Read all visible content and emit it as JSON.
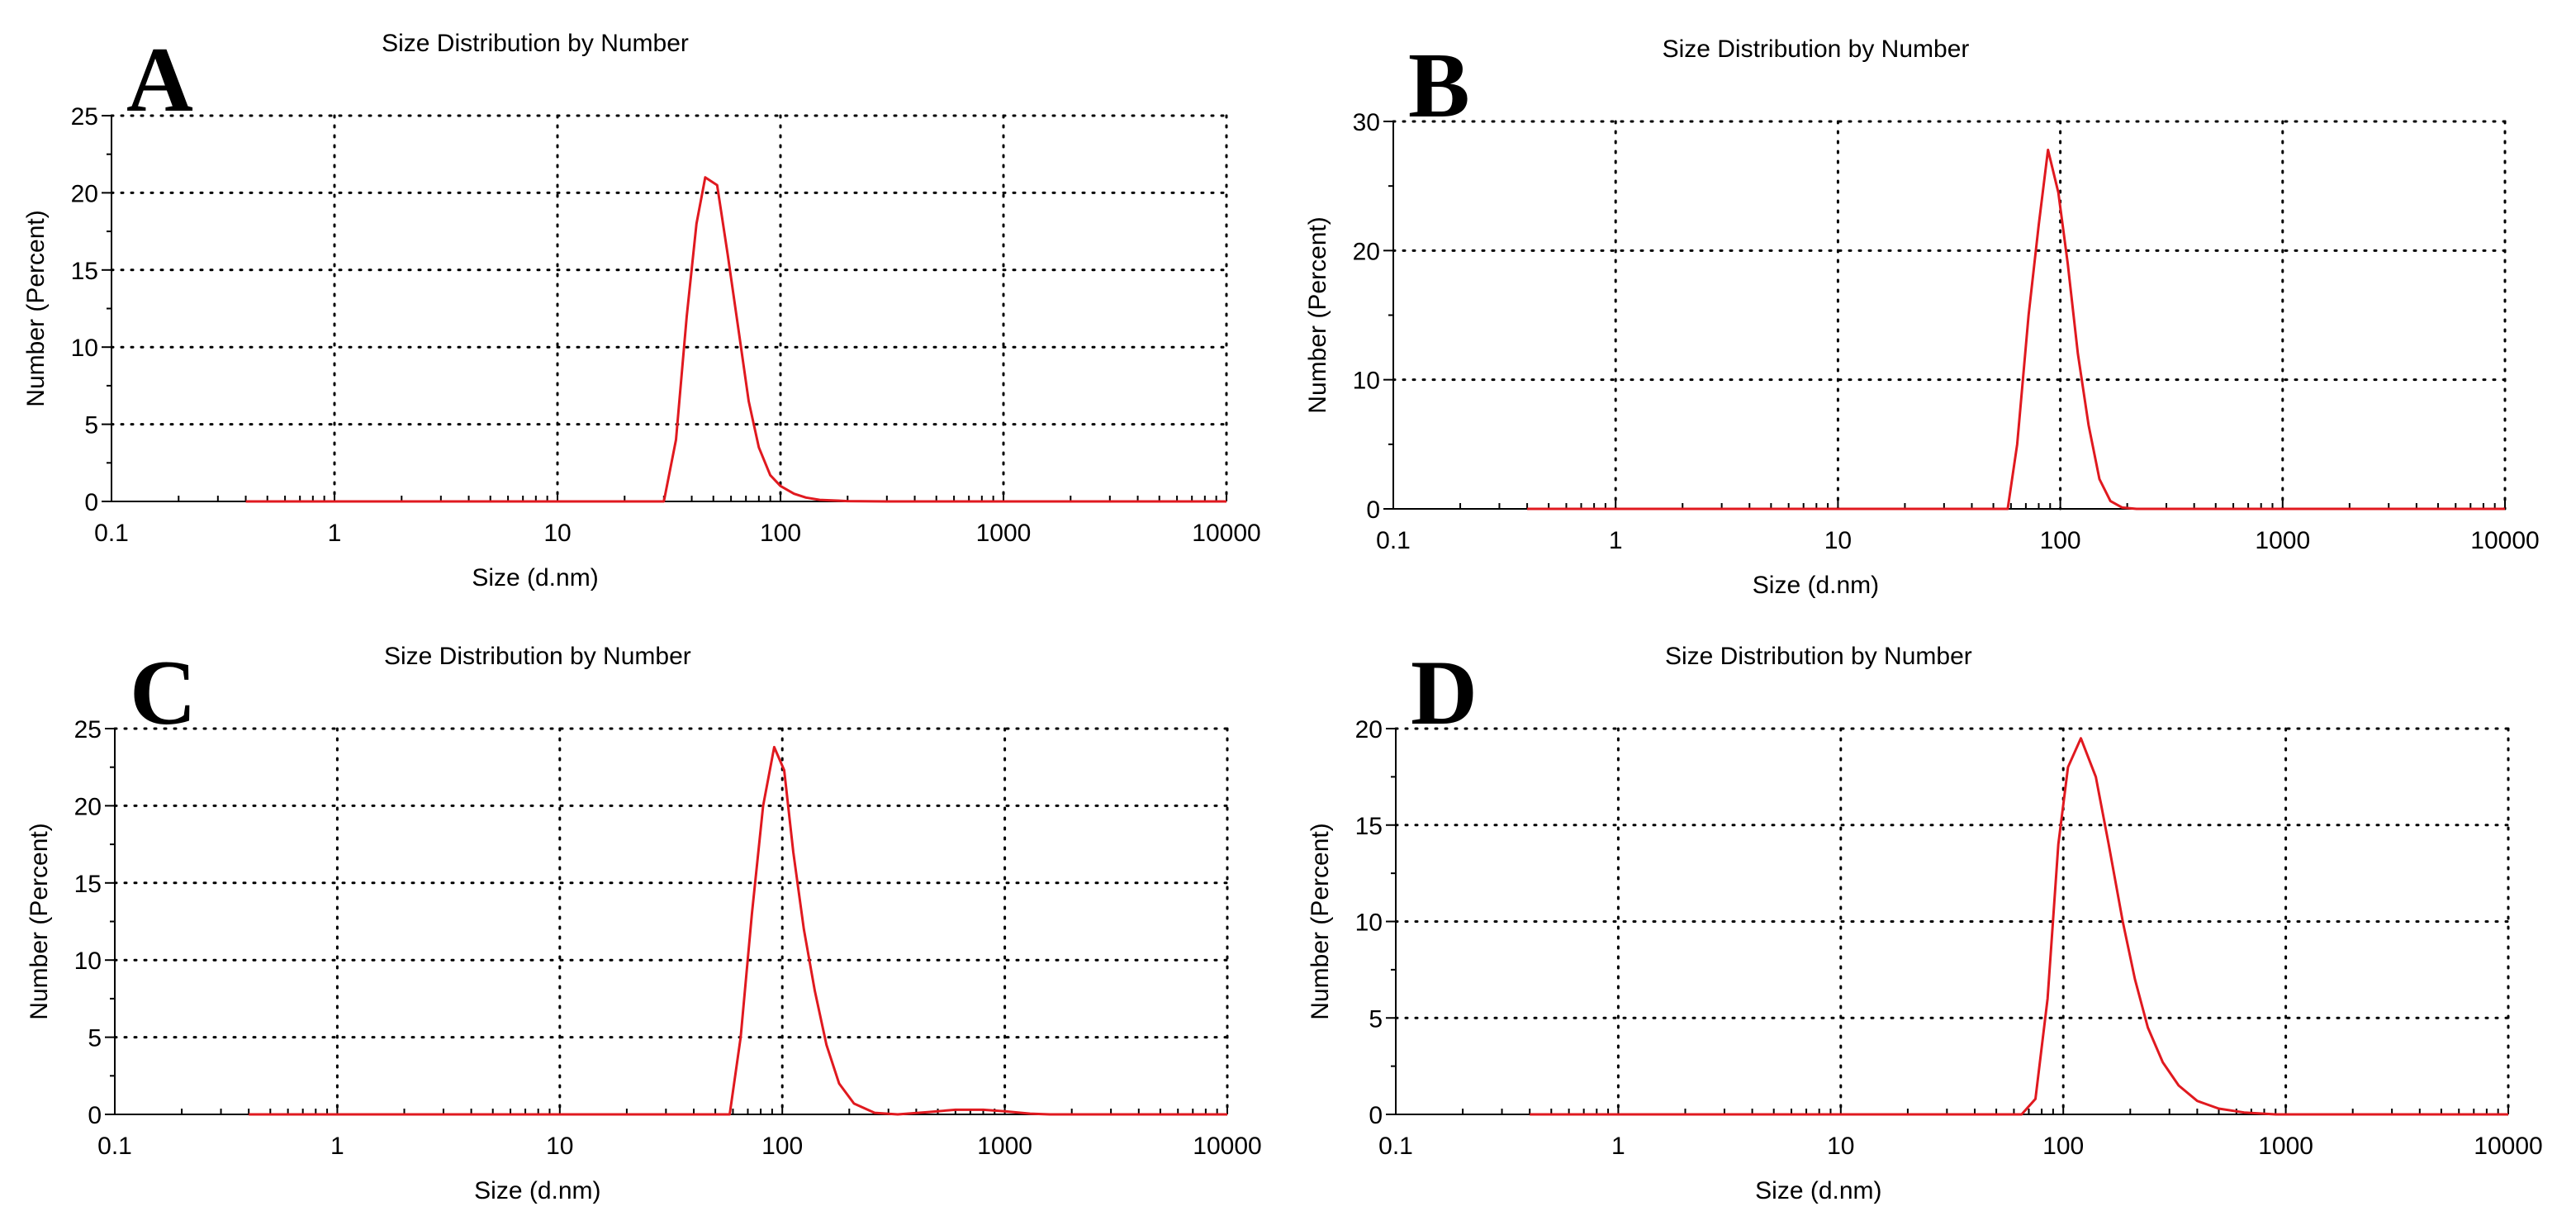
{
  "chart_data": [
    {
      "type": "line",
      "panel": "A",
      "title": "Size Distribution by Number",
      "xlabel": "Size (d.nm)",
      "ylabel": "Number (Percent)",
      "xscale": "log",
      "xlim": [
        0.1,
        10000
      ],
      "ylim": [
        0,
        25
      ],
      "xticks": [
        "0.1",
        "1",
        "10",
        "100",
        "1000",
        "10000"
      ],
      "yticks": [
        "0",
        "5",
        "10",
        "15",
        "20",
        "25"
      ],
      "grid": true,
      "line_color": "#e0191f",
      "series": [
        {
          "name": "Number",
          "points": [
            [
              0.4,
              0
            ],
            [
              30,
              0
            ],
            [
              34,
              4
            ],
            [
              38,
              12
            ],
            [
              42,
              18
            ],
            [
              46,
              21
            ],
            [
              52,
              20.5
            ],
            [
              58,
              16
            ],
            [
              65,
              11
            ],
            [
              72,
              6.5
            ],
            [
              80,
              3.5
            ],
            [
              90,
              1.7
            ],
            [
              100,
              1.0
            ],
            [
              115,
              0.5
            ],
            [
              130,
              0.25
            ],
            [
              150,
              0.1
            ],
            [
              200,
              0.02
            ],
            [
              300,
              0
            ],
            [
              10000,
              0
            ]
          ]
        }
      ]
    },
    {
      "type": "line",
      "panel": "B",
      "title": "Size Distribution by Number",
      "xlabel": "Size (d.nm)",
      "ylabel": "Number (Percent)",
      "xscale": "log",
      "xlim": [
        0.1,
        10000
      ],
      "ylim": [
        0,
        30
      ],
      "xticks": [
        "0.1",
        "1",
        "10",
        "100",
        "1000",
        "10000"
      ],
      "yticks": [
        "0",
        "10",
        "20",
        "30"
      ],
      "grid": true,
      "line_color": "#e0191f",
      "series": [
        {
          "name": "Number",
          "points": [
            [
              0.4,
              0
            ],
            [
              58,
              0
            ],
            [
              64,
              5
            ],
            [
              72,
              15
            ],
            [
              80,
              22
            ],
            [
              88,
              27.8
            ],
            [
              98,
              24.5
            ],
            [
              108,
              19
            ],
            [
              120,
              12
            ],
            [
              134,
              6.5
            ],
            [
              150,
              2.3
            ],
            [
              168,
              0.6
            ],
            [
              190,
              0.1
            ],
            [
              220,
              0
            ],
            [
              10000,
              0
            ]
          ]
        }
      ]
    },
    {
      "type": "line",
      "panel": "C",
      "title": "Size Distribution by Number",
      "xlabel": "Size (d.nm)",
      "ylabel": "Number (Percent)",
      "xscale": "log",
      "xlim": [
        0.1,
        10000
      ],
      "ylim": [
        0,
        25
      ],
      "xticks": [
        "0.1",
        "1",
        "10",
        "100",
        "1000",
        "10000"
      ],
      "yticks": [
        "0",
        "5",
        "10",
        "15",
        "20",
        "25"
      ],
      "grid": true,
      "line_color": "#e0191f",
      "series": [
        {
          "name": "Number",
          "points": [
            [
              0.4,
              0
            ],
            [
              58,
              0
            ],
            [
              65,
              5
            ],
            [
              73,
              13
            ],
            [
              82,
              20
            ],
            [
              92,
              23.8
            ],
            [
              102,
              22.3
            ],
            [
              112,
              17
            ],
            [
              125,
              12
            ],
            [
              140,
              8
            ],
            [
              158,
              4.5
            ],
            [
              180,
              2
            ],
            [
              210,
              0.7
            ],
            [
              260,
              0.1
            ],
            [
              330,
              0
            ],
            [
              450,
              0.15
            ],
            [
              600,
              0.3
            ],
            [
              800,
              0.3
            ],
            [
              1000,
              0.2
            ],
            [
              1300,
              0.05
            ],
            [
              1600,
              0
            ],
            [
              10000,
              0
            ]
          ]
        }
      ]
    },
    {
      "type": "line",
      "panel": "D",
      "title": "Size Distribution by Number",
      "xlabel": "Size (d.nm)",
      "ylabel": "Number (Percent)",
      "xscale": "log",
      "xlim": [
        0.1,
        10000
      ],
      "ylim": [
        0,
        20
      ],
      "xticks": [
        "0.1",
        "1",
        "10",
        "100",
        "1000",
        "10000"
      ],
      "yticks": [
        "0",
        "5",
        "10",
        "15",
        "20"
      ],
      "grid": true,
      "line_color": "#e0191f",
      "series": [
        {
          "name": "Number",
          "points": [
            [
              0.4,
              0
            ],
            [
              65,
              0
            ],
            [
              75,
              0.8
            ],
            [
              85,
              6
            ],
            [
              95,
              14
            ],
            [
              105,
              18
            ],
            [
              120,
              19.5
            ],
            [
              140,
              17.5
            ],
            [
              160,
              14
            ],
            [
              185,
              10
            ],
            [
              210,
              7
            ],
            [
              240,
              4.5
            ],
            [
              280,
              2.7
            ],
            [
              330,
              1.5
            ],
            [
              400,
              0.7
            ],
            [
              500,
              0.3
            ],
            [
              650,
              0.1
            ],
            [
              900,
              0
            ],
            [
              10000,
              0
            ]
          ]
        }
      ]
    }
  ]
}
